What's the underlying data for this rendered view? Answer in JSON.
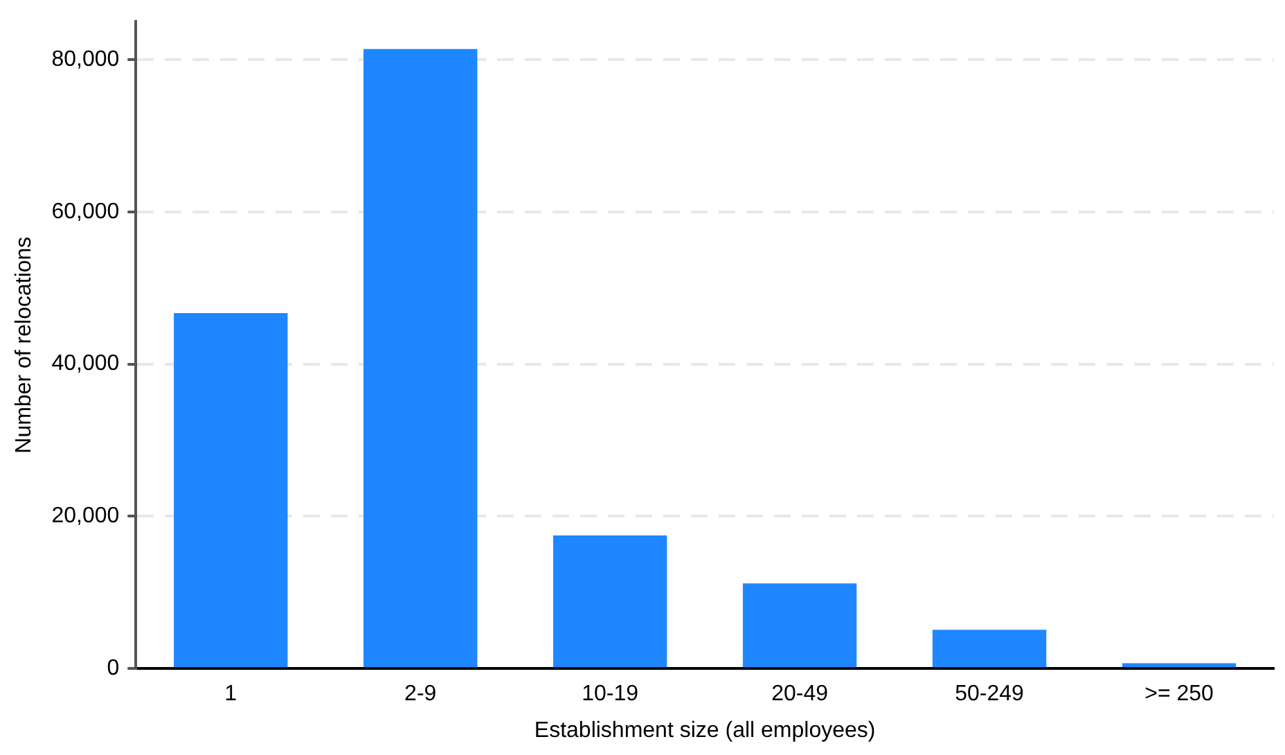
{
  "chart_data": {
    "type": "bar",
    "xlabel": "Establishment size (all employees)",
    "ylabel": "Number of relocations",
    "categories": [
      "1",
      "2-9",
      "10-19",
      "20-49",
      "50-249",
      ">= 250"
    ],
    "values": [
      46700,
      81400,
      17500,
      11200,
      5100,
      700
    ],
    "color": "#1e87ff",
    "ylim": [
      0,
      85000
    ],
    "yticks": [
      {
        "value": 0,
        "label": "0"
      },
      {
        "value": 20000,
        "label": "20,000"
      },
      {
        "value": 40000,
        "label": "40,000"
      },
      {
        "value": 60000,
        "label": "60,000"
      },
      {
        "value": 80000,
        "label": "80,000"
      }
    ],
    "grid": "y",
    "legend": false
  }
}
